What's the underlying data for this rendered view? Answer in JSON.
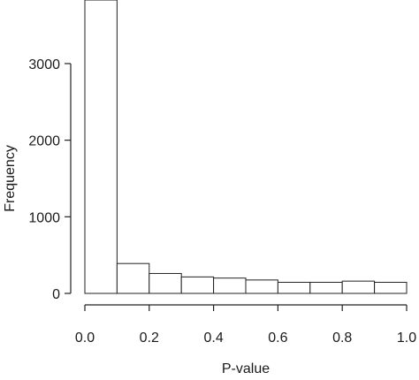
{
  "chart_data": {
    "type": "bar",
    "subtype": "histogram",
    "title": "",
    "xlabel": "P-value",
    "ylabel": "Frequency",
    "bin_edges": [
      0.0,
      0.1,
      0.2,
      0.3,
      0.4,
      0.5,
      0.6,
      0.7,
      0.8,
      0.9,
      1.0
    ],
    "values": [
      3830,
      390,
      260,
      215,
      200,
      175,
      145,
      145,
      160,
      145
    ],
    "xlim": [
      0.0,
      1.0
    ],
    "ylim": [
      0,
      3830
    ],
    "x_ticks": [
      0.0,
      0.2,
      0.4,
      0.6,
      0.8,
      1.0
    ],
    "x_tick_labels": [
      "0.0",
      "0.2",
      "0.4",
      "0.6",
      "0.8",
      "1.0"
    ],
    "y_ticks": [
      0,
      1000,
      2000,
      3000
    ],
    "y_tick_labels": [
      "0",
      "1000",
      "2000",
      "3000"
    ],
    "grid": false,
    "legend": "none"
  }
}
